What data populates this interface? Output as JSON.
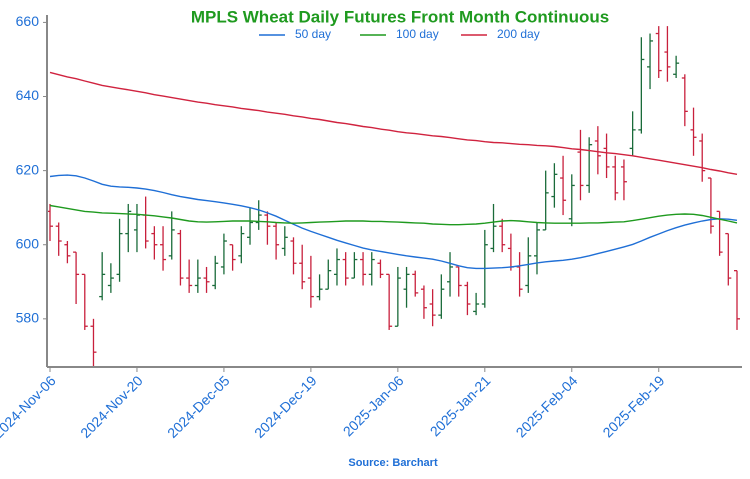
{
  "chart_data": {
    "type": "ohlc",
    "title": "MPLS Wheat Daily Futures Front Month Continuous",
    "source": "Source: Barchart",
    "categories": [
      "2024-Nov-06",
      null,
      null,
      null,
      null,
      null,
      null,
      null,
      null,
      null,
      "2024-Nov-20",
      null,
      null,
      null,
      null,
      null,
      null,
      null,
      null,
      null,
      "2024-Dec-05",
      null,
      null,
      null,
      null,
      null,
      null,
      null,
      null,
      null,
      "2024-Dec-19",
      null,
      null,
      null,
      null,
      null,
      null,
      null,
      null,
      null,
      "2025-Jan-06",
      null,
      null,
      null,
      null,
      null,
      null,
      null,
      null,
      null,
      "2025-Jan-21",
      null,
      null,
      null,
      null,
      null,
      null,
      null,
      null,
      null,
      "2025-Feb-04",
      null,
      null,
      null,
      null,
      null,
      null,
      null,
      null,
      null,
      "2025-Feb-19",
      null,
      null,
      null,
      null,
      null,
      null,
      null,
      null,
      null
    ],
    "open": [
      609,
      605,
      600,
      598,
      592,
      578,
      586,
      589,
      592,
      603,
      604,
      608,
      603,
      600,
      597,
      603,
      591,
      589,
      591,
      589,
      594,
      600,
      597,
      602,
      606,
      608,
      605,
      599,
      601,
      595,
      591,
      586,
      588,
      592,
      596,
      591,
      596,
      592,
      595,
      592,
      578,
      588,
      592,
      588,
      584,
      581,
      590,
      594,
      589,
      582,
      584,
      599,
      605,
      599,
      594,
      589,
      597,
      604,
      613,
      618,
      607,
      625,
      616,
      628,
      626,
      621,
      621,
      626,
      631,
      648,
      657,
      652,
      646,
      645,
      631,
      628,
      618,
      609,
      603,
      593
    ],
    "high": [
      611,
      606,
      601,
      598,
      592,
      580,
      598,
      595,
      607,
      611,
      611,
      613,
      605,
      605,
      609,
      604,
      596,
      596,
      594,
      597,
      603,
      600,
      605,
      610,
      612,
      609,
      606,
      605,
      602,
      600,
      597,
      592,
      596,
      599,
      598,
      598,
      598,
      598,
      596,
      592,
      594,
      594,
      593,
      589,
      588,
      592,
      598,
      594,
      590,
      587,
      604,
      611,
      607,
      603,
      598,
      602,
      606,
      620,
      622,
      624,
      619,
      631,
      629,
      632,
      630,
      624,
      623,
      636,
      656,
      657,
      659,
      659,
      651,
      646,
      637,
      630,
      618,
      609,
      603,
      593
    ],
    "low": [
      601,
      597,
      595,
      584,
      577,
      567,
      585,
      587,
      590,
      598,
      598,
      599,
      596,
      593,
      596,
      589,
      587,
      587,
      587,
      588,
      592,
      593,
      595,
      600,
      604,
      600,
      596,
      597,
      592,
      588,
      583,
      585,
      588,
      589,
      589,
      591,
      589,
      589,
      591,
      577,
      578,
      583,
      586,
      580,
      578,
      580,
      586,
      586,
      581,
      581,
      583,
      598,
      598,
      593,
      586,
      587,
      592,
      604,
      610,
      608,
      605,
      612,
      614,
      619,
      618,
      612,
      612,
      624,
      630,
      642,
      645,
      644,
      645,
      632,
      624,
      617,
      603,
      597,
      589,
      577
    ],
    "close": [
      605,
      601,
      597,
      592,
      578,
      571,
      592,
      591,
      603,
      609,
      608,
      601,
      600,
      596,
      604,
      591,
      589,
      591,
      590,
      595,
      601,
      596,
      603,
      606,
      608,
      605,
      600,
      602,
      595,
      590,
      586,
      588,
      593,
      596,
      591,
      596,
      592,
      596,
      592,
      578,
      591,
      592,
      587,
      583,
      581,
      588,
      594,
      589,
      584,
      584,
      600,
      605,
      600,
      594,
      588,
      597,
      604,
      614,
      619,
      612,
      616,
      616,
      627,
      624,
      621,
      614,
      617,
      631,
      650,
      655,
      647,
      648,
      649,
      636,
      629,
      620,
      605,
      598,
      591,
      580
    ],
    "up_color": "#1a6b3a",
    "down_color": "#c8203c",
    "series": [
      {
        "name": "50 day",
        "color": "#1f6fd6",
        "values": [
          618.4,
          618.7,
          618.8,
          618.6,
          618.0,
          617.2,
          616.3,
          615.8,
          615.6,
          615.5,
          615.3,
          615.0,
          614.6,
          614.1,
          613.5,
          613.0,
          612.6,
          612.2,
          611.9,
          611.6,
          611.3,
          610.9,
          610.5,
          610.0,
          609.4,
          608.6,
          607.7,
          606.6,
          605.5,
          604.5,
          603.6,
          602.8,
          602.0,
          601.2,
          600.5,
          599.8,
          599.1,
          598.6,
          598.2,
          597.8,
          597.4,
          597.0,
          596.7,
          596.4,
          596.1,
          595.6,
          595.0,
          594.3,
          593.8,
          593.6,
          593.6,
          593.7,
          593.8,
          594.0,
          594.3,
          594.7,
          595.1,
          595.4,
          595.6,
          595.8,
          596.1,
          596.5,
          597.0,
          597.6,
          598.2,
          598.8,
          599.4,
          600.1,
          601.0,
          602.0,
          602.9,
          603.8,
          604.6,
          605.3,
          605.9,
          606.4,
          606.8,
          607.0,
          606.9,
          606.6
        ]
      },
      {
        "name": "100 day",
        "color": "#1f9a1f",
        "values": [
          610.6,
          610.2,
          609.8,
          609.4,
          609.0,
          608.8,
          608.6,
          608.5,
          608.4,
          608.3,
          608.2,
          608.0,
          607.8,
          607.5,
          607.2,
          606.8,
          606.4,
          606.2,
          606.1,
          606.2,
          606.3,
          606.4,
          606.4,
          606.4,
          606.3,
          606.2,
          606.0,
          605.9,
          605.8,
          605.9,
          606.0,
          606.1,
          606.2,
          606.3,
          606.4,
          606.4,
          606.4,
          606.3,
          606.3,
          606.2,
          606.1,
          606.0,
          605.9,
          605.8,
          605.6,
          605.5,
          605.4,
          605.4,
          605.5,
          605.6,
          605.8,
          606.1,
          606.4,
          606.5,
          606.4,
          606.2,
          606.0,
          605.9,
          605.8,
          605.8,
          605.8,
          605.8,
          605.9,
          605.9,
          606.0,
          606.1,
          606.2,
          606.5,
          606.9,
          607.3,
          607.7,
          608.0,
          608.2,
          608.3,
          608.2,
          607.9,
          607.4,
          606.9,
          606.4,
          605.9
        ]
      },
      {
        "name": "200 day",
        "color": "#d0233f",
        "values": [
          646.5,
          645.9,
          645.3,
          644.8,
          644.2,
          643.6,
          643.0,
          642.6,
          642.2,
          641.8,
          641.4,
          641.0,
          640.5,
          640.1,
          639.7,
          639.3,
          638.9,
          638.5,
          638.2,
          637.8,
          637.5,
          637.2,
          636.8,
          636.5,
          636.2,
          635.8,
          635.5,
          635.2,
          634.8,
          634.5,
          634.1,
          633.8,
          633.4,
          633.0,
          632.7,
          632.3,
          631.9,
          631.6,
          631.2,
          630.9,
          630.5,
          630.2,
          630.0,
          629.7,
          629.4,
          629.2,
          628.9,
          628.6,
          628.3,
          628.1,
          627.8,
          627.6,
          627.5,
          627.3,
          627.1,
          627.0,
          626.8,
          626.7,
          626.5,
          626.2,
          625.9,
          625.7,
          625.4,
          625.1,
          624.8,
          624.6,
          624.3,
          624.0,
          623.6,
          623.2,
          622.8,
          622.4,
          622.0,
          621.6,
          621.2,
          620.8,
          620.3,
          619.9,
          619.4,
          619.0
        ]
      }
    ],
    "ylim": [
      567,
      662
    ],
    "yticks": [
      580,
      600,
      620,
      640,
      660
    ],
    "grid": false,
    "legend": "top"
  }
}
